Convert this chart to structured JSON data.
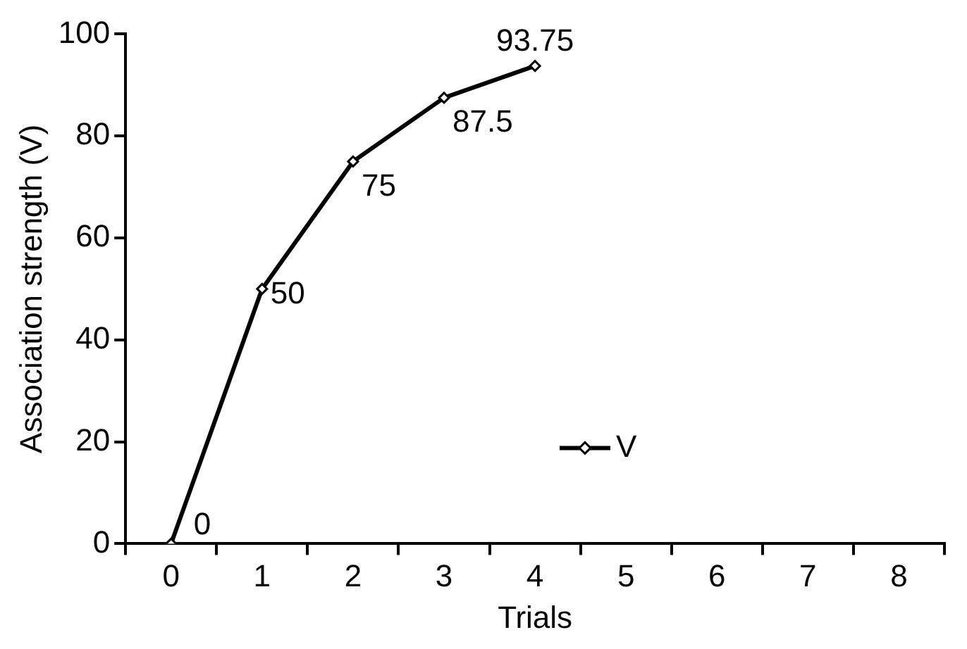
{
  "chart_data": {
    "type": "line",
    "xlabel": "Trials",
    "ylabel": "Association strength (V)",
    "categories": [
      "0",
      "1",
      "2",
      "3",
      "4",
      "5",
      "6",
      "7",
      "8"
    ],
    "series": [
      {
        "name": "V",
        "color": "#000000",
        "values": [
          0,
          50,
          75,
          87.5,
          93.75,
          null,
          null,
          null,
          null
        ]
      }
    ],
    "ylim": [
      0,
      100
    ],
    "yticks": [
      0,
      20,
      40,
      60,
      80,
      100
    ],
    "grid": false,
    "legend": "bottom",
    "marker": "diamond",
    "line_style": "solid",
    "data_labels": true
  }
}
